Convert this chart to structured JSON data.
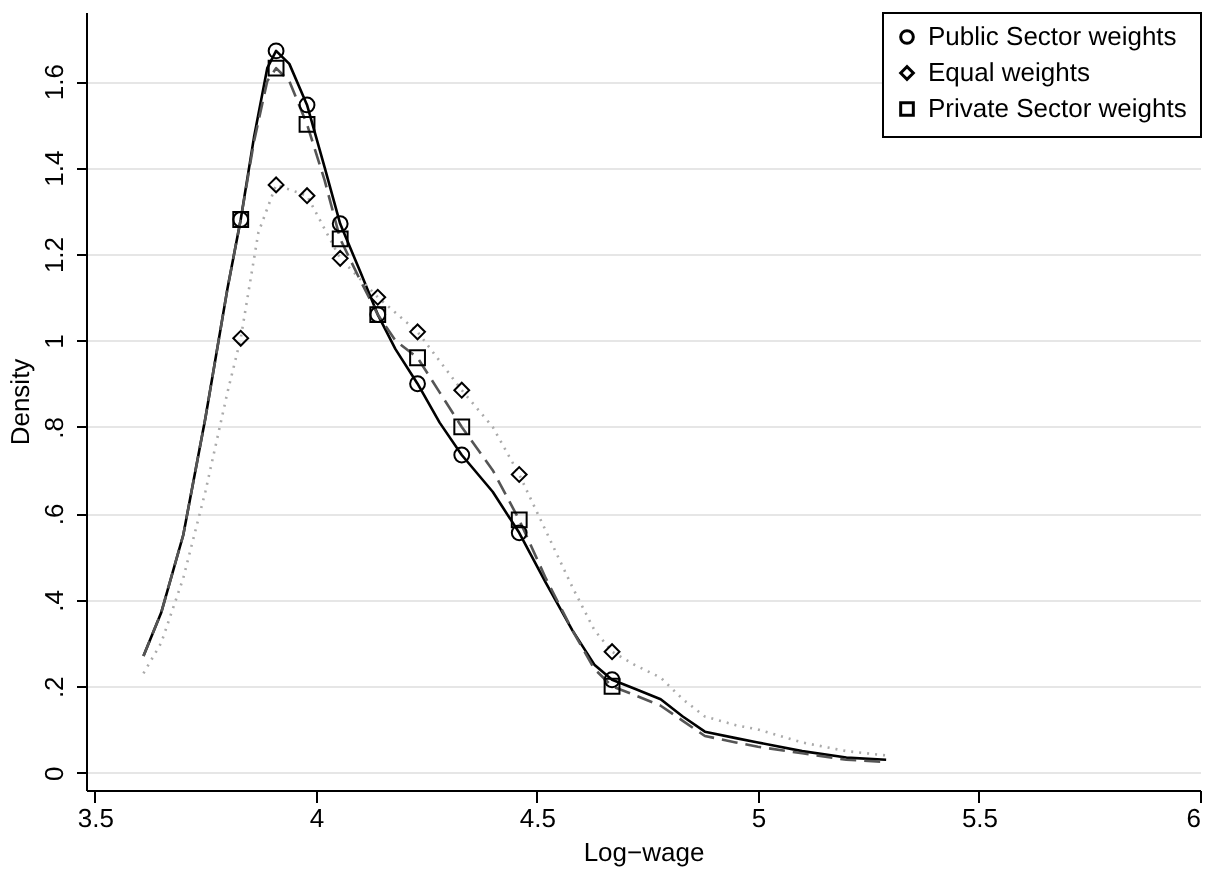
{
  "chart_data": {
    "type": "line",
    "xlabel": "Log−wage",
    "ylabel": "Density",
    "xlim": [
      3.48,
      6.0
    ],
    "xticks": [
      3.5,
      4,
      4.5,
      5,
      5.5,
      6
    ],
    "ylim": [
      -0.04,
      1.76
    ],
    "yticks": [
      0,
      {
        "value": 0.2,
        "label": ".2"
      },
      {
        "value": 0.4,
        "label": ".4"
      },
      {
        "value": 0.6,
        "label": ".6"
      },
      {
        "value": 0.8,
        "label": ".8"
      },
      1,
      1.2,
      1.4,
      1.6
    ],
    "grid": "y",
    "legend": "top right",
    "series": [
      {
        "type": "line",
        "color": "#000000",
        "line_style": "solid",
        "x": [
          3.61,
          3.65,
          3.7,
          3.75,
          3.8,
          3.83,
          3.86,
          3.89,
          3.91,
          3.94,
          3.98,
          4.02,
          4.055,
          4.1,
          4.14,
          4.18,
          4.23,
          4.28,
          4.33,
          4.4,
          4.46,
          4.52,
          4.58,
          4.63,
          4.67,
          4.72,
          4.78,
          4.83,
          4.88,
          4.95,
          5.0,
          5.1,
          5.2,
          5.29
        ],
        "values": [
          0.27,
          0.37,
          0.55,
          0.82,
          1.12,
          1.28,
          1.47,
          1.63,
          1.67,
          1.64,
          1.545,
          1.4,
          1.27,
          1.16,
          1.06,
          0.98,
          0.9,
          0.81,
          0.735,
          0.65,
          0.555,
          0.44,
          0.33,
          0.25,
          0.215,
          0.195,
          0.17,
          0.13,
          0.095,
          0.08,
          0.07,
          0.05,
          0.035,
          0.03
        ]
      },
      {
        "type": "line",
        "color": "#aaaaaa",
        "line_style": "dotted",
        "x": [
          3.61,
          3.65,
          3.7,
          3.75,
          3.8,
          3.83,
          3.87,
          3.91,
          3.98,
          4.055,
          4.14,
          4.23,
          4.33,
          4.4,
          4.46,
          4.52,
          4.58,
          4.63,
          4.67,
          4.72,
          4.78,
          4.83,
          4.88,
          4.95,
          5.0,
          5.1,
          5.2,
          5.29
        ],
        "values": [
          0.23,
          0.3,
          0.45,
          0.65,
          0.88,
          1.005,
          1.25,
          1.36,
          1.335,
          1.19,
          1.1,
          1.02,
          0.885,
          0.8,
          0.69,
          0.56,
          0.43,
          0.33,
          0.28,
          0.25,
          0.22,
          0.17,
          0.13,
          0.11,
          0.1,
          0.07,
          0.05,
          0.04
        ]
      },
      {
        "type": "line",
        "color": "#555555",
        "line_style": "dashed",
        "x": [
          3.61,
          3.65,
          3.7,
          3.75,
          3.8,
          3.83,
          3.86,
          3.89,
          3.91,
          3.94,
          3.98,
          4.02,
          4.055,
          4.1,
          4.14,
          4.18,
          4.23,
          4.28,
          4.33,
          4.4,
          4.46,
          4.52,
          4.58,
          4.63,
          4.67,
          4.72,
          4.78,
          4.83,
          4.88,
          4.95,
          5.0,
          5.1,
          5.2,
          5.29
        ],
        "values": [
          0.27,
          0.37,
          0.55,
          0.82,
          1.12,
          1.28,
          1.46,
          1.6,
          1.63,
          1.6,
          1.5,
          1.37,
          1.235,
          1.14,
          1.06,
          1.0,
          0.96,
          0.88,
          0.8,
          0.7,
          0.585,
          0.45,
          0.33,
          0.24,
          0.2,
          0.18,
          0.155,
          0.12,
          0.085,
          0.07,
          0.06,
          0.045,
          0.03,
          0.025
        ]
      },
      {
        "type": "scatter",
        "name": "Public Sector weights",
        "color": "#000000",
        "marker": "circle",
        "x": [
          3.83,
          3.91,
          3.98,
          4.055,
          4.14,
          4.23,
          4.33,
          4.46,
          4.67
        ],
        "values": [
          1.28,
          1.67,
          1.545,
          1.27,
          1.06,
          0.9,
          0.735,
          0.555,
          0.215
        ]
      },
      {
        "type": "scatter",
        "name": "Equal weights",
        "color": "#000000",
        "marker": "diamond",
        "x": [
          3.83,
          3.91,
          3.98,
          4.055,
          4.14,
          4.23,
          4.33,
          4.46,
          4.67
        ],
        "values": [
          1.005,
          1.36,
          1.335,
          1.19,
          1.1,
          1.02,
          0.885,
          0.69,
          0.28
        ]
      },
      {
        "type": "scatter",
        "name": "Private Sector weights",
        "color": "#000000",
        "marker": "square",
        "x": [
          3.83,
          3.91,
          3.98,
          4.055,
          4.14,
          4.23,
          4.33,
          4.46,
          4.67
        ],
        "values": [
          1.28,
          1.63,
          1.5,
          1.235,
          1.06,
          0.96,
          0.8,
          0.585,
          0.2
        ]
      }
    ]
  }
}
